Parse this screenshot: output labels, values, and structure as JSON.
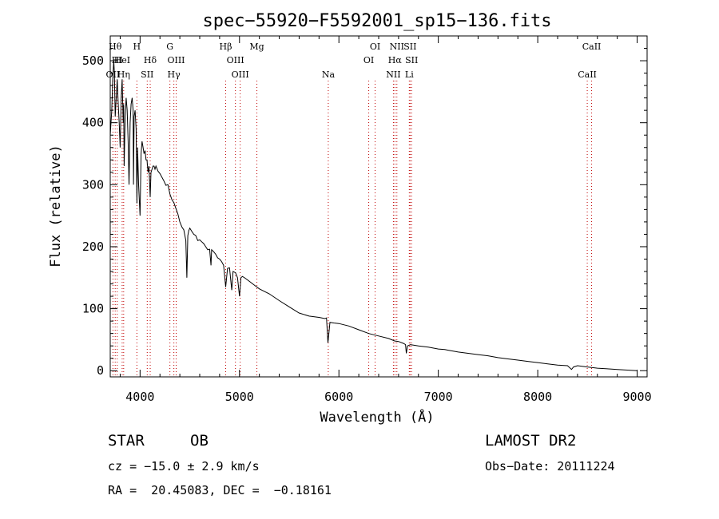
{
  "chart_data": {
    "type": "line",
    "title": "spec−55920−F5592001_sp15−136.fits",
    "xlabel": "Wavelength (Å)",
    "ylabel": "Flux (relative)",
    "xlim": [
      3700,
      9100
    ],
    "ylim": [
      -10,
      540
    ],
    "xticks": [
      4000,
      5000,
      6000,
      7000,
      8000,
      9000
    ],
    "yticks": [
      0,
      100,
      200,
      300,
      400,
      500
    ],
    "series": [
      {
        "name": "spectrum",
        "x": [
          3700,
          3715,
          3725,
          3735,
          3742,
          3750,
          3760,
          3770,
          3780,
          3790,
          3800,
          3810,
          3820,
          3830,
          3835,
          3840,
          3850,
          3860,
          3870,
          3880,
          3889,
          3900,
          3910,
          3920,
          3930,
          3934,
          3940,
          3950,
          3960,
          3968,
          3975,
          3985,
          4000,
          4010,
          4020,
          4030,
          4040,
          4050,
          4060,
          4070,
          4080,
          4090,
          4102,
          4110,
          4120,
          4130,
          4140,
          4150,
          4160,
          4180,
          4200,
          4220,
          4240,
          4260,
          4280,
          4300,
          4320,
          4340,
          4360,
          4380,
          4400,
          4420,
          4440,
          4460,
          4471,
          4480,
          4490,
          4500,
          4520,
          4540,
          4560,
          4580,
          4600,
          4620,
          4640,
          4660,
          4680,
          4700,
          4713,
          4720,
          4740,
          4760,
          4780,
          4800,
          4820,
          4840,
          4861,
          4880,
          4900,
          4922,
          4935,
          4960,
          4980,
          5000,
          5015,
          5030,
          5060,
          5100,
          5150,
          5200,
          5300,
          5400,
          5500,
          5600,
          5700,
          5800,
          5860,
          5875,
          5890,
          5910,
          5950,
          6000,
          6100,
          6200,
          6300,
          6400,
          6500,
          6560,
          6600,
          6650,
          6670,
          6678,
          6690,
          6720,
          6800,
          6900,
          7000,
          7065,
          7100,
          7200,
          7300,
          7400,
          7500,
          7600,
          7700,
          7800,
          7900,
          8000,
          8100,
          8200,
          8300,
          8340,
          8360,
          8400,
          8500,
          8600,
          8700,
          8800,
          8900,
          9000
        ],
        "values": [
          380,
          420,
          470,
          500,
          480,
          410,
          440,
          470,
          430,
          400,
          360,
          440,
          470,
          400,
          430,
          330,
          410,
          440,
          420,
          370,
          300,
          400,
          430,
          440,
          420,
          300,
          410,
          420,
          390,
          270,
          360,
          300,
          250,
          350,
          370,
          360,
          350,
          355,
          340,
          340,
          320,
          330,
          280,
          320,
          325,
          330,
          330,
          325,
          330,
          322,
          318,
          312,
          306,
          299,
          300,
          285,
          276,
          271,
          262,
          253,
          240,
          232,
          227,
          210,
          150,
          218,
          226,
          230,
          225,
          220,
          218,
          210,
          211,
          208,
          205,
          200,
          195,
          196,
          170,
          195,
          192,
          188,
          182,
          180,
          176,
          170,
          135,
          165,
          166,
          130,
          160,
          158,
          150,
          120,
          150,
          152,
          149,
          144,
          138,
          132,
          124,
          113,
          103,
          93,
          88,
          86,
          84,
          85,
          45,
          78,
          77,
          76,
          72,
          66,
          60,
          56,
          52,
          48,
          47,
          44,
          42,
          28,
          40,
          42,
          40,
          38,
          35,
          34,
          33,
          30,
          28,
          26,
          24,
          21,
          19,
          17,
          15,
          13,
          11,
          9,
          8,
          2,
          6,
          8,
          6,
          4,
          3,
          2,
          1,
          0
        ]
      }
    ],
    "lines": [
      {
        "label": "OII",
        "wavelength": 3727,
        "row": 2
      },
      {
        "label": "Hθ",
        "wavelength": 3750,
        "row": 0
      },
      {
        "label": "HI",
        "wavelength": 3770,
        "row": 1
      },
      {
        "label": "HeI",
        "wavelength": 3820,
        "row": 1
      },
      {
        "label": "Hη",
        "wavelength": 3835,
        "row": 2
      },
      {
        "label": "H",
        "wavelength": 3968,
        "row": 0
      },
      {
        "label": "Hδ",
        "wavelength": 4102,
        "row": 1
      },
      {
        "label": "SII",
        "wavelength": 4072,
        "row": 2
      },
      {
        "label": "G",
        "wavelength": 4300,
        "row": 0
      },
      {
        "label": "OIII",
        "wavelength": 4363,
        "row": 1
      },
      {
        "label": "Hγ",
        "wavelength": 4340,
        "row": 2
      },
      {
        "label": "Hβ",
        "wavelength": 4861,
        "row": 0
      },
      {
        "label": "OIII",
        "wavelength": 4959,
        "row": 1
      },
      {
        "label": "OIII",
        "wavelength": 5007,
        "row": 2
      },
      {
        "label": "Mg",
        "wavelength": 5175,
        "row": 0
      },
      {
        "label": "Na",
        "wavelength": 5893,
        "row": 2
      },
      {
        "label": "OI",
        "wavelength": 6364,
        "row": 0
      },
      {
        "label": "OI",
        "wavelength": 6300,
        "row": 1
      },
      {
        "label": "NII",
        "wavelength": 6583,
        "row": 0
      },
      {
        "label": "SII",
        "wavelength": 6716,
        "row": 0
      },
      {
        "label": "Hα",
        "wavelength": 6563,
        "row": 1
      },
      {
        "label": "SII",
        "wavelength": 6731,
        "row": 1
      },
      {
        "label": "NII",
        "wavelength": 6548,
        "row": 2
      },
      {
        "label": "Li",
        "wavelength": 6708,
        "row": 2
      },
      {
        "label": "CaII",
        "wavelength": 8542,
        "row": 0
      },
      {
        "label": "CaII",
        "wavelength": 8498,
        "row": 2
      }
    ]
  },
  "info": {
    "object_class": "STAR",
    "subclass": "OB",
    "survey": "LAMOST DR2",
    "redshift_text": "cz = −15.0 ± 2.9 km/s",
    "obs_date_text": "Obs−Date: 20111224",
    "coords_text": "RA =  20.45083, DEC =  −0.18161"
  }
}
